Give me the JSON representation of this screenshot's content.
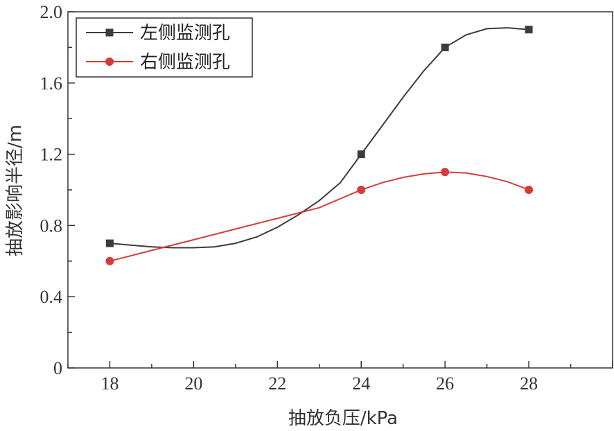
{
  "chart_data": {
    "type": "line",
    "title": "",
    "xlabel": "抽放负压/kPa",
    "ylabel": "抽放影响半径/m",
    "x": [
      18,
      20,
      22,
      24,
      26,
      28
    ],
    "xticks": [
      18,
      20,
      22,
      24,
      26,
      28
    ],
    "xtick_labels": [
      "18",
      "20",
      "22",
      "24",
      "26",
      "28"
    ],
    "xlim": [
      17,
      30
    ],
    "ylim": [
      0,
      2.0
    ],
    "yticks": [
      0,
      0.4,
      0.8,
      1.2,
      1.6,
      2.0
    ],
    "ytick_labels": [
      "0",
      "0.4",
      "0.8",
      "1.2",
      "1.6",
      "2.0"
    ],
    "grid": false,
    "legend_position": "top-left",
    "series": [
      {
        "name": "左侧监测孔",
        "color": "#3c3c3c",
        "marker": "square",
        "x": [
          18,
          24,
          26,
          28
        ],
        "values": [
          0.7,
          1.2,
          1.8,
          1.9
        ],
        "curve": [
          [
            18,
            0.7
          ],
          [
            18.5,
            0.69
          ],
          [
            19,
            0.68
          ],
          [
            19.5,
            0.675
          ],
          [
            20,
            0.675
          ],
          [
            20.5,
            0.68
          ],
          [
            21,
            0.7
          ],
          [
            21.5,
            0.735
          ],
          [
            22,
            0.79
          ],
          [
            22.5,
            0.86
          ],
          [
            23,
            0.94
          ],
          [
            23.5,
            1.04
          ],
          [
            24,
            1.2
          ],
          [
            24.5,
            1.36
          ],
          [
            25,
            1.52
          ],
          [
            25.5,
            1.67
          ],
          [
            26,
            1.8
          ],
          [
            26.5,
            1.87
          ],
          [
            27,
            1.905
          ],
          [
            27.5,
            1.91
          ],
          [
            28,
            1.9
          ]
        ]
      },
      {
        "name": "右侧监测孔",
        "color": "#d63b3b",
        "marker": "circle",
        "x": [
          18,
          24,
          26,
          28
        ],
        "values": [
          0.6,
          1.0,
          1.1,
          1.0
        ],
        "curve": [
          [
            18,
            0.6
          ],
          [
            19,
            0.66
          ],
          [
            20,
            0.72
          ],
          [
            21,
            0.78
          ],
          [
            22,
            0.84
          ],
          [
            23,
            0.9
          ],
          [
            24,
            1.0
          ],
          [
            24.5,
            1.04
          ],
          [
            25,
            1.07
          ],
          [
            25.5,
            1.09
          ],
          [
            26,
            1.1
          ],
          [
            26.5,
            1.095
          ],
          [
            27,
            1.075
          ],
          [
            27.5,
            1.045
          ],
          [
            28,
            1.0
          ]
        ]
      }
    ]
  }
}
